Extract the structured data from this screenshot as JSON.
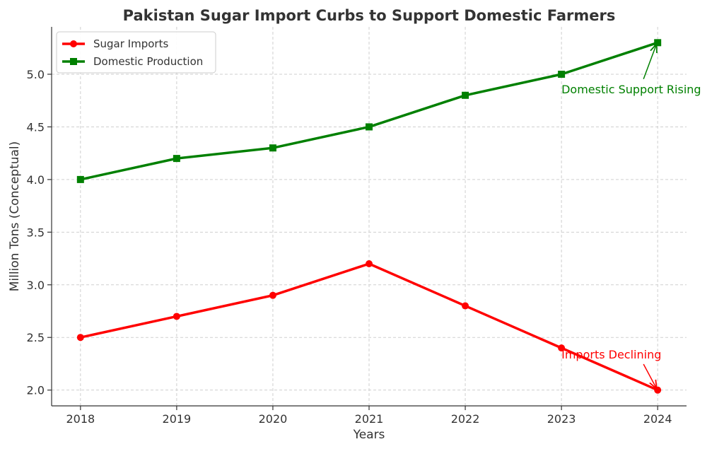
{
  "chart_data": {
    "type": "line",
    "title": "Pakistan Sugar Import Curbs to Support Domestic Farmers",
    "xlabel": "Years",
    "ylabel": "Million Tons (Conceptual)",
    "x": [
      2018,
      2019,
      2020,
      2021,
      2022,
      2023,
      2024
    ],
    "x_tick_labels": [
      "2018",
      "2019",
      "2020",
      "2021",
      "2022",
      "2023",
      "2024"
    ],
    "xlim": [
      2017.7,
      2024.3
    ],
    "ylim": [
      1.85,
      5.45
    ],
    "y_ticks": [
      2.0,
      2.5,
      3.0,
      3.5,
      4.0,
      4.5,
      5.0
    ],
    "y_tick_labels": [
      "2.0",
      "2.5",
      "3.0",
      "3.5",
      "4.0",
      "4.5",
      "5.0"
    ],
    "grid": true,
    "legend_position": "top-left",
    "series": [
      {
        "name": "Sugar Imports",
        "values": [
          2.5,
          2.7,
          2.9,
          3.2,
          2.8,
          2.4,
          2.0
        ],
        "color": "#ff0000",
        "marker": "circle"
      },
      {
        "name": "Domestic Production",
        "values": [
          4.0,
          4.2,
          4.3,
          4.5,
          4.8,
          5.0,
          5.3
        ],
        "color": "#008000",
        "marker": "square"
      }
    ],
    "annotations": [
      {
        "text": "Imports Declining",
        "color": "#ff0000",
        "text_x": 2023,
        "text_y": 2.3,
        "arrow_x": 2024,
        "arrow_y": 2.0
      },
      {
        "text": "Domestic Support Rising",
        "color": "#008000",
        "text_x": 2023,
        "text_y": 4.82,
        "arrow_x": 2024,
        "arrow_y": 5.3
      }
    ]
  }
}
